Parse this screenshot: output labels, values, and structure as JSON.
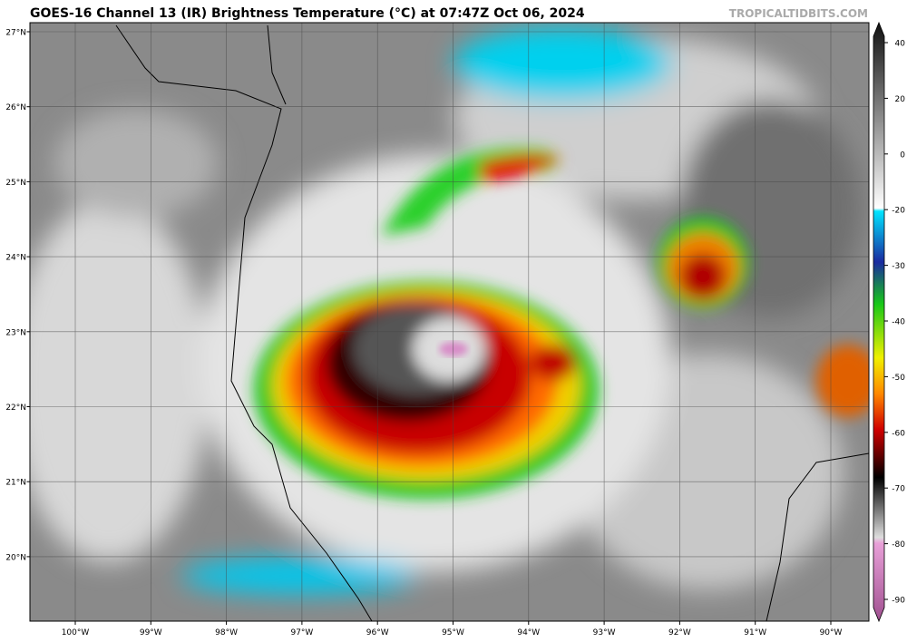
{
  "header": {
    "title": "GOES-16 Channel 13 (IR) Brightness Temperature (°C) at 07:47Z Oct 06, 2024",
    "credit": "TROPICALTIDBITS.COM"
  },
  "map": {
    "lat_labels": [
      "27°N",
      "26°N",
      "25°N",
      "24°N",
      "23°N",
      "22°N",
      "21°N",
      "20°N"
    ],
    "lon_labels": [
      "100°W",
      "99°W",
      "98°W",
      "97°W",
      "96°W",
      "95°W",
      "94°W",
      "93°W",
      "92°W",
      "91°W",
      "90°W"
    ]
  },
  "colorbar": {
    "ticks": [
      40,
      20,
      0,
      -20,
      -30,
      -40,
      -50,
      -60,
      -70,
      -80,
      -90
    ]
  }
}
